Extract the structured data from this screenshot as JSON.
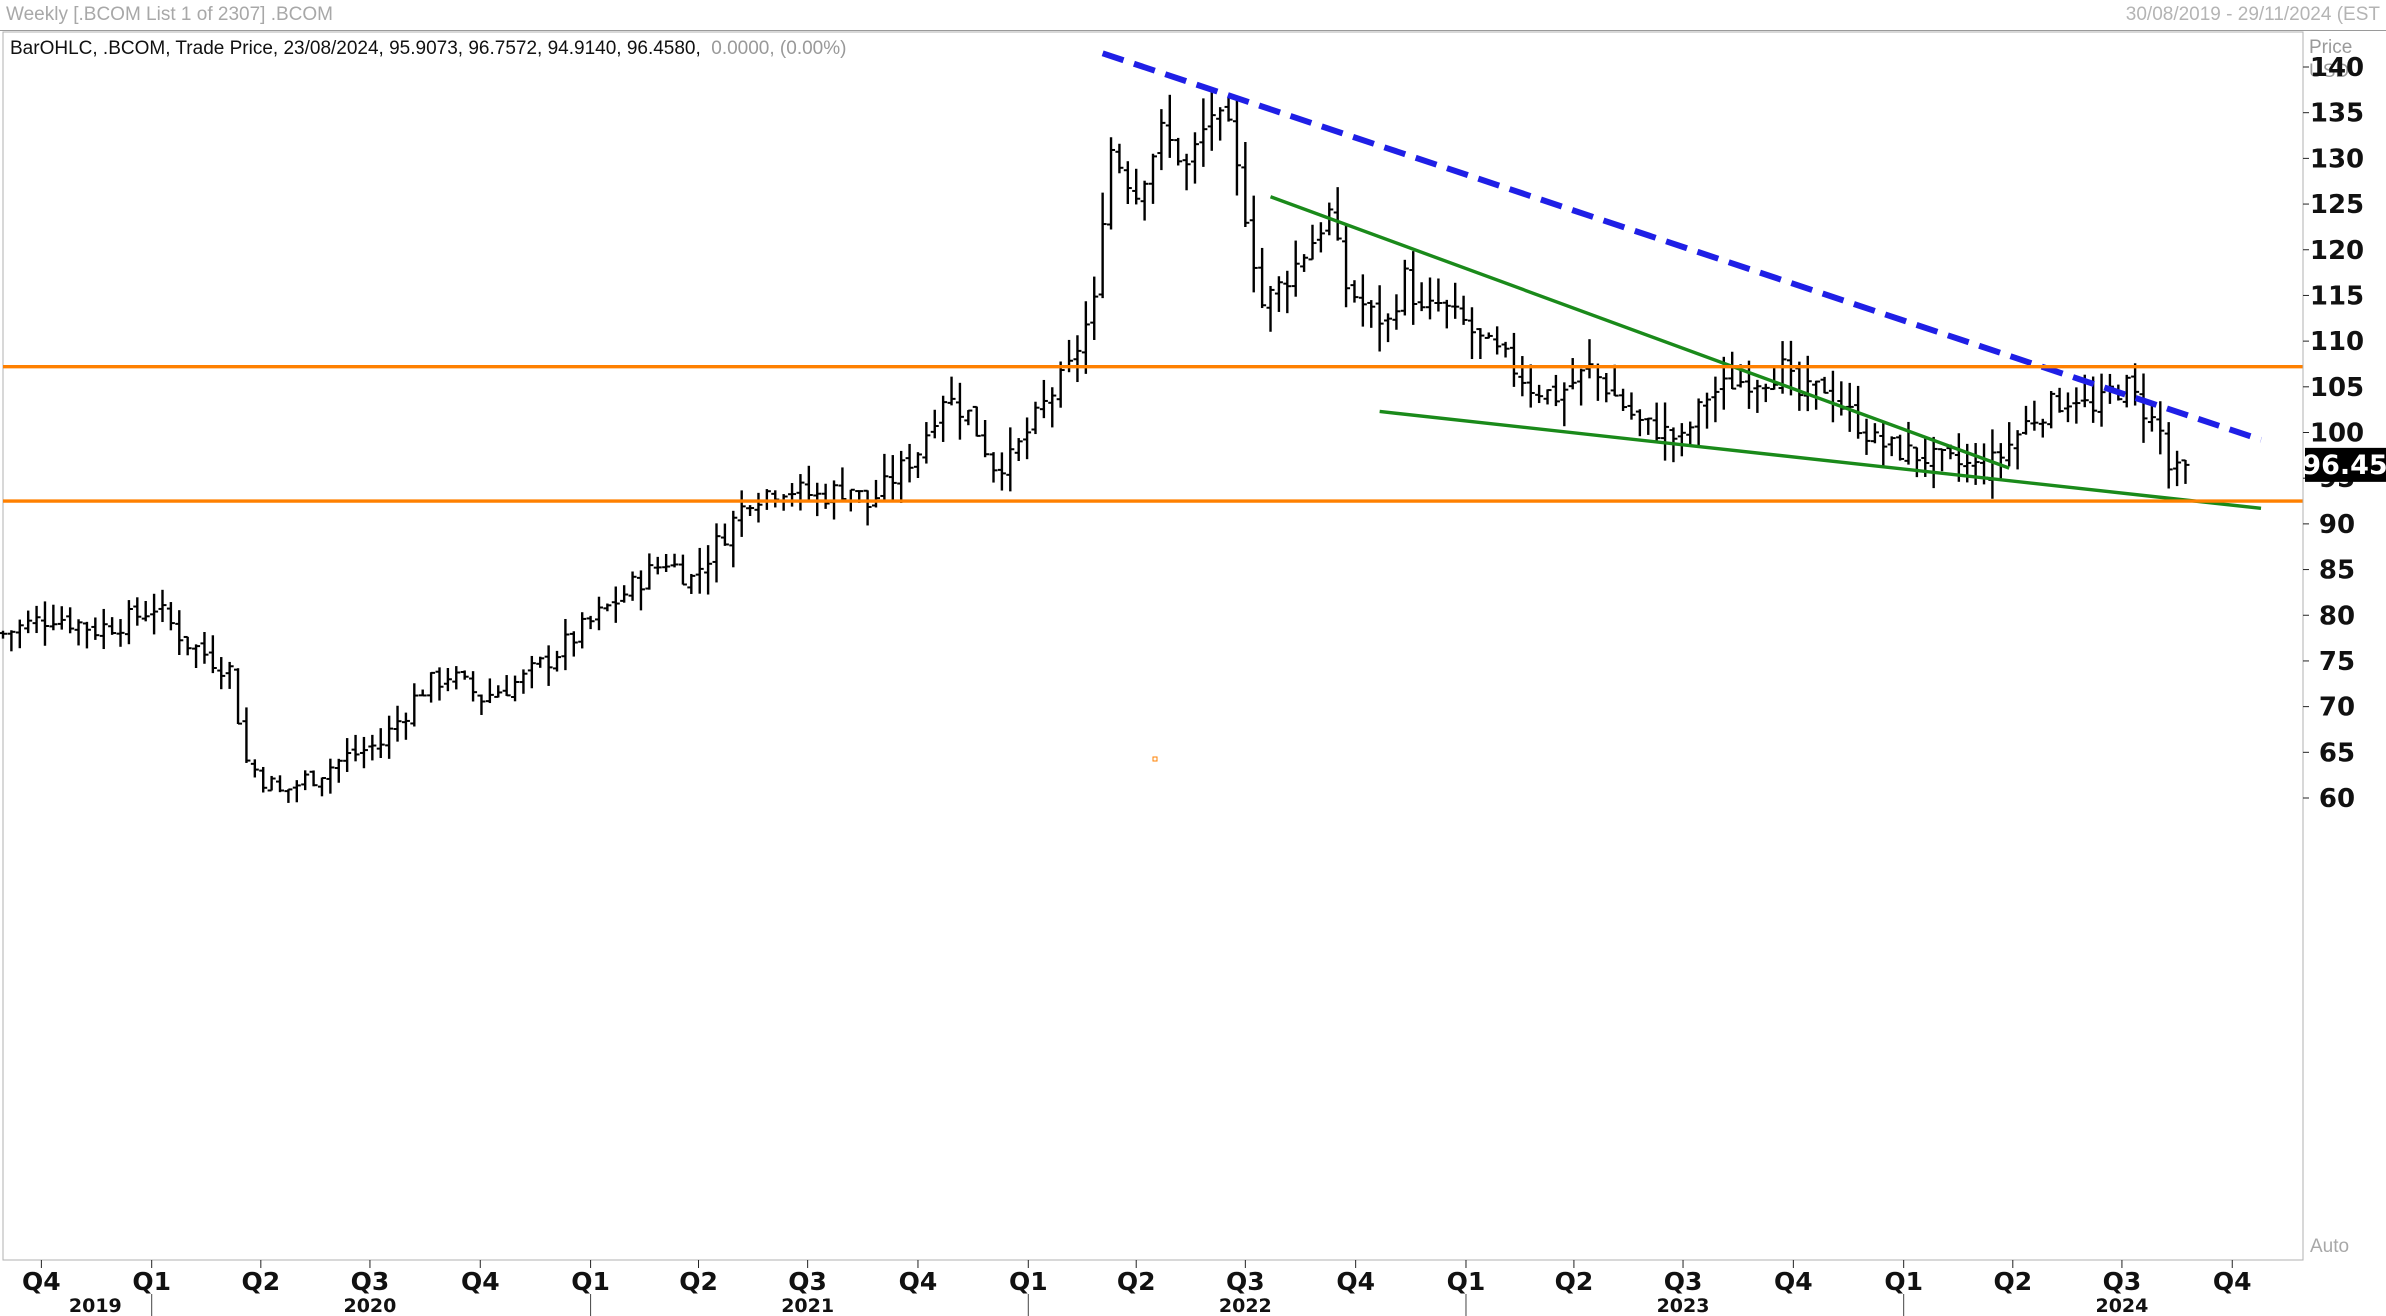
{
  "header": {
    "left_text": "Weekly [.BCOM List 1 of 2307] .BCOM",
    "right_text": "30/08/2019 - 29/11/2024 (EST"
  },
  "legend": {
    "main": "BarOHLC, .BCOM, Trade Price, 23/08/2024, 95.9073, 96.7572, 94.9140, 96.4580,",
    "change": "0.0000, (0.00%)"
  },
  "axis": {
    "unit_top": "Price",
    "unit_bottom": "USD",
    "auto_label": "Auto",
    "last_price_label": "96.45"
  },
  "colors": {
    "bars": "#000000",
    "resistance_dashed": "#1f1fe6",
    "wedge_lines": "#1a8a1a",
    "horizontal_levels": "#ff8000",
    "last_price_bg": "#000000"
  },
  "chart_data": {
    "type": "ohlc",
    "ylim": [
      58,
      143
    ],
    "yticks": [
      60,
      65,
      70,
      75,
      80,
      85,
      90,
      95,
      100,
      105,
      110,
      115,
      120,
      125,
      130,
      135,
      140
    ],
    "xlim": [
      "2019-08-30",
      "2024-11-29"
    ],
    "quarter_ticks": [
      {
        "label": "Q4",
        "date": "2019-10-01"
      },
      {
        "label": "Q1",
        "date": "2020-01-01"
      },
      {
        "label": "Q2",
        "date": "2020-04-01"
      },
      {
        "label": "Q3",
        "date": "2020-07-01"
      },
      {
        "label": "Q4",
        "date": "2020-10-01"
      },
      {
        "label": "Q1",
        "date": "2021-01-01"
      },
      {
        "label": "Q2",
        "date": "2021-04-01"
      },
      {
        "label": "Q3",
        "date": "2021-07-01"
      },
      {
        "label": "Q4",
        "date": "2021-10-01"
      },
      {
        "label": "Q1",
        "date": "2022-01-01"
      },
      {
        "label": "Q2",
        "date": "2022-04-01"
      },
      {
        "label": "Q3",
        "date": "2022-07-01"
      },
      {
        "label": "Q4",
        "date": "2022-10-01"
      },
      {
        "label": "Q1",
        "date": "2023-01-01"
      },
      {
        "label": "Q2",
        "date": "2023-04-01"
      },
      {
        "label": "Q3",
        "date": "2023-07-01"
      },
      {
        "label": "Q4",
        "date": "2023-10-01"
      },
      {
        "label": "Q1",
        "date": "2024-01-01"
      },
      {
        "label": "Q2",
        "date": "2024-04-01"
      },
      {
        "label": "Q3",
        "date": "2024-07-01"
      },
      {
        "label": "Q4",
        "date": "2024-10-01"
      }
    ],
    "year_ticks": [
      {
        "label": "2019",
        "date": "2019-11-15"
      },
      {
        "label": "2020",
        "date": "2020-07-01"
      },
      {
        "label": "2021",
        "date": "2021-07-01"
      },
      {
        "label": "2022",
        "date": "2022-07-01"
      },
      {
        "label": "2023",
        "date": "2023-07-01"
      },
      {
        "label": "2024",
        "date": "2024-07-01"
      }
    ],
    "year_separators": [
      "2020-01-01",
      "2021-01-01",
      "2022-01-01",
      "2023-01-01",
      "2024-01-01"
    ],
    "last_close": 96.458,
    "trendlines": [
      {
        "name": "resistance",
        "style": "dashed",
        "color": "#1f1fe6",
        "points": [
          [
            "2022-03-04",
            141.5
          ],
          [
            "2024-10-25",
            99.2
          ]
        ]
      },
      {
        "name": "wedge-upper",
        "style": "solid",
        "color": "#1a8a1a",
        "points": [
          [
            "2022-07-22",
            125.8
          ],
          [
            "2024-03-29",
            96.1
          ]
        ]
      },
      {
        "name": "wedge-lower",
        "style": "solid",
        "color": "#1a8a1a",
        "points": [
          [
            "2022-10-21",
            102.3
          ],
          [
            "2024-10-25",
            91.7
          ]
        ]
      },
      {
        "name": "level-high",
        "style": "solid",
        "color": "#ff8000",
        "points": [
          [
            "2019-08-30",
            107.2
          ],
          [
            "2024-11-29",
            107.2
          ]
        ]
      },
      {
        "name": "level-low",
        "style": "solid",
        "color": "#ff8000",
        "points": [
          [
            "2019-08-30",
            92.5
          ],
          [
            "2024-11-29",
            92.5
          ]
        ]
      }
    ],
    "anchors": [
      [
        "2019-08-30",
        78
      ],
      [
        "2019-10-11",
        80
      ],
      [
        "2019-11-15",
        78.5
      ],
      [
        "2019-12-13",
        79.5
      ],
      [
        "2020-01-03",
        81
      ],
      [
        "2020-01-31",
        77
      ],
      [
        "2020-03-06",
        74
      ],
      [
        "2020-03-20",
        64
      ],
      [
        "2020-04-17",
        60.5
      ],
      [
        "2020-05-15",
        62.5
      ],
      [
        "2020-06-12",
        64.5
      ],
      [
        "2020-07-10",
        66
      ],
      [
        "2020-08-14",
        72
      ],
      [
        "2020-09-04",
        73.5
      ],
      [
        "2020-10-02",
        71
      ],
      [
        "2020-11-06",
        73
      ],
      [
        "2020-12-04",
        76
      ],
      [
        "2021-01-08",
        80
      ],
      [
        "2021-02-12",
        84
      ],
      [
        "2021-03-05",
        86
      ],
      [
        "2021-03-26",
        84
      ],
      [
        "2021-04-23",
        89
      ],
      [
        "2021-05-14",
        93
      ],
      [
        "2021-06-11",
        94
      ],
      [
        "2021-07-09",
        93
      ],
      [
        "2021-08-06",
        94
      ],
      [
        "2021-08-20",
        92
      ],
      [
        "2021-09-10",
        95
      ],
      [
        "2021-10-01",
        98
      ],
      [
        "2021-10-22",
        104
      ],
      [
        "2021-11-12",
        102
      ],
      [
        "2021-12-03",
        96.5
      ],
      [
        "2021-12-17",
        97
      ],
      [
        "2022-01-14",
        103
      ],
      [
        "2022-02-04",
        107
      ],
      [
        "2022-02-25",
        114
      ],
      [
        "2022-03-04",
        124
      ],
      [
        "2022-03-11",
        131
      ],
      [
        "2022-04-01",
        126
      ],
      [
        "2022-04-22",
        133
      ],
      [
        "2022-05-13",
        129
      ],
      [
        "2022-06-03",
        135
      ],
      [
        "2022-06-17",
        133
      ],
      [
        "2022-07-01",
        124
      ],
      [
        "2022-07-15",
        114
      ],
      [
        "2022-08-05",
        117
      ],
      [
        "2022-08-26",
        121
      ],
      [
        "2022-09-09",
        124
      ],
      [
        "2022-09-23",
        116
      ],
      [
        "2022-10-14",
        113
      ],
      [
        "2022-10-28",
        112
      ],
      [
        "2022-11-11",
        117
      ],
      [
        "2022-11-25",
        113
      ],
      [
        "2022-12-09",
        114
      ],
      [
        "2022-12-30",
        112
      ],
      [
        "2023-01-13",
        110
      ],
      [
        "2023-02-03",
        108
      ],
      [
        "2023-02-24",
        105
      ],
      [
        "2023-03-17",
        104
      ],
      [
        "2023-04-14",
        107
      ],
      [
        "2023-05-05",
        104
      ],
      [
        "2023-05-26",
        101
      ],
      [
        "2023-06-16",
        100
      ],
      [
        "2023-06-30",
        99
      ],
      [
        "2023-07-21",
        104
      ],
      [
        "2023-08-11",
        105.5
      ],
      [
        "2023-09-08",
        106
      ],
      [
        "2023-09-22",
        107
      ],
      [
        "2023-10-06",
        104
      ],
      [
        "2023-10-27",
        105
      ],
      [
        "2023-11-17",
        102
      ],
      [
        "2023-12-08",
        99
      ],
      [
        "2023-12-29",
        98
      ],
      [
        "2024-01-26",
        97
      ],
      [
        "2024-02-16",
        96.5
      ],
      [
        "2024-03-08",
        96
      ],
      [
        "2024-03-22",
        97.5
      ],
      [
        "2024-04-12",
        101
      ],
      [
        "2024-05-03",
        103
      ],
      [
        "2024-05-24",
        104
      ],
      [
        "2024-06-07",
        102
      ],
      [
        "2024-06-21",
        104.5
      ],
      [
        "2024-07-05",
        105
      ],
      [
        "2024-07-19",
        102.5
      ],
      [
        "2024-08-02",
        100
      ],
      [
        "2024-08-09",
        96
      ],
      [
        "2024-08-16",
        95.5
      ],
      [
        "2024-08-23",
        96.46
      ]
    ]
  }
}
